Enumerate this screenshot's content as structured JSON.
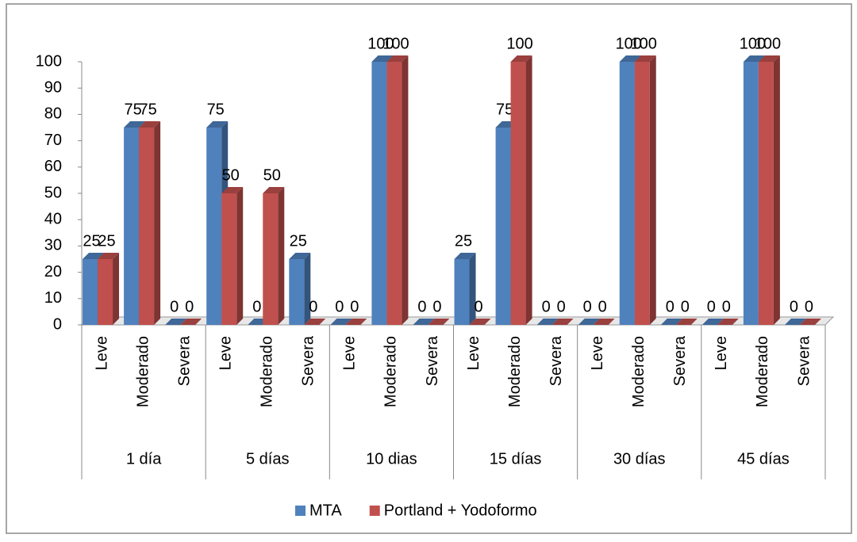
{
  "chart_data": {
    "type": "bar3d",
    "categories": [
      "Leve",
      "Moderado",
      "Severa",
      "Leve",
      "Moderado",
      "Severa",
      "Leve",
      "Moderado",
      "Severa",
      "Leve",
      "Moderado",
      "Severa",
      "Leve",
      "Moderado",
      "Severa",
      "Leve",
      "Moderado",
      "Severa"
    ],
    "groups": [
      "1 día",
      "5 días",
      "10 dias",
      "15 días",
      "30 días",
      "45 días"
    ],
    "series": [
      {
        "name": "MTA",
        "color": "#4f81bd",
        "values": [
          25,
          75,
          0,
          75,
          0,
          25,
          0,
          100,
          0,
          25,
          75,
          0,
          0,
          100,
          0,
          0,
          100,
          0
        ]
      },
      {
        "name": "Portland + Yodoformo",
        "color": "#c0504d",
        "values": [
          25,
          75,
          0,
          50,
          50,
          0,
          0,
          100,
          0,
          0,
          100,
          0,
          0,
          100,
          0,
          0,
          100,
          0
        ]
      }
    ],
    "ylim": [
      0,
      100
    ],
    "yticks": [
      0,
      10,
      20,
      30,
      40,
      50,
      60,
      70,
      80,
      90,
      100
    ],
    "grid": false,
    "legend": "bottom"
  }
}
